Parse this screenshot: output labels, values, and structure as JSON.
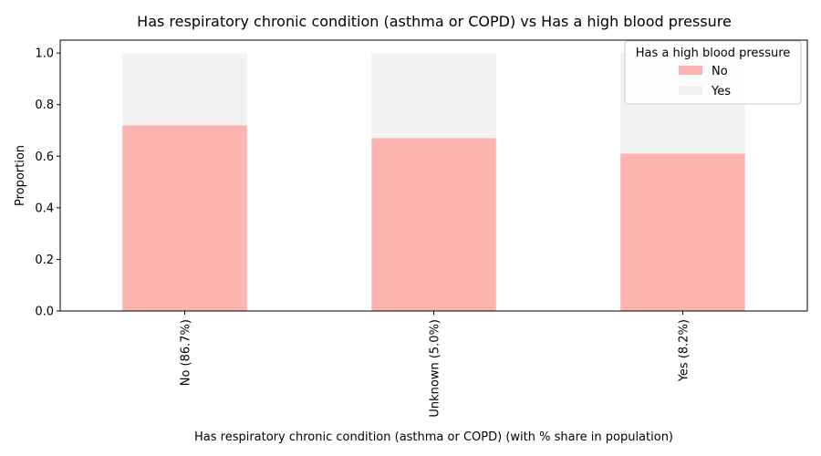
{
  "chart_data": {
    "type": "bar",
    "stacked": true,
    "title": "Has respiratory chronic condition (asthma or COPD) vs Has a high blood pressure",
    "xlabel": "Has respiratory chronic condition (asthma or COPD) (with % share in population)",
    "ylabel": "Proportion",
    "categories": [
      "No (86.7%)",
      "Unknown (5.0%)",
      "Yes (8.2%)"
    ],
    "ylim": [
      0,
      1.05
    ],
    "yticks": [
      "0.0",
      "0.2",
      "0.4",
      "0.6",
      "0.8",
      "1.0"
    ],
    "grid": false,
    "legend": {
      "title": "Has a high blood pressure",
      "placement": "top-right"
    },
    "series": [
      {
        "name": "No",
        "values": [
          0.72,
          0.67,
          0.61
        ],
        "color": "#fbb4ae"
      },
      {
        "name": "Yes",
        "values": [
          0.28,
          0.33,
          0.39
        ],
        "color": "#f2f2f2"
      }
    ]
  }
}
